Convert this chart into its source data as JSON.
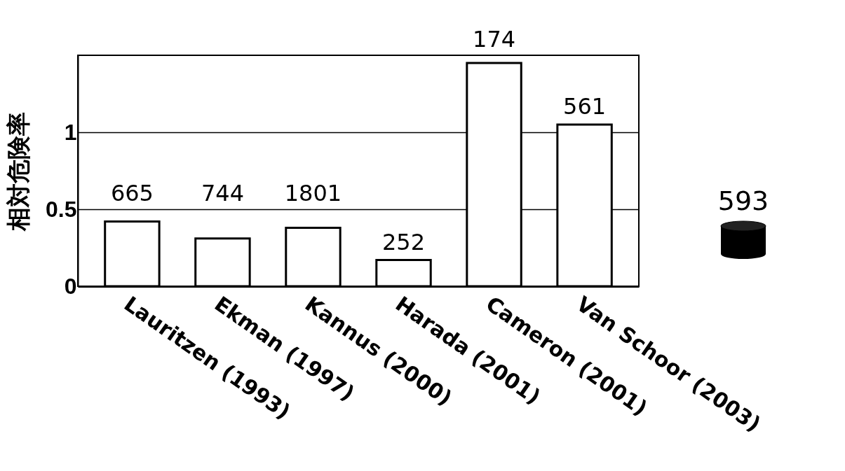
{
  "chart_data": {
    "type": "bar",
    "ylabel": "相対危険率",
    "categories": [
      "Lauritzen (1993)",
      "Ekman (1997)",
      "Kannus (2000)",
      "Harada (2001)",
      "Cameron (2001)",
      "Van Schoor (2003)"
    ],
    "values": [
      0.42,
      0.31,
      0.38,
      0.17,
      1.45,
      1.05
    ],
    "color": "#ffffff",
    "ylim": [
      0,
      1.5
    ],
    "yticks": [
      0,
      0.5,
      1
    ],
    "grid": "y",
    "annotations": [
      {
        "text": "665",
        "x": "Lauritzen (1993)",
        "y": 0.42
      },
      {
        "text": "744",
        "x": "Ekman (1997)",
        "y": 0.31
      },
      {
        "text": "1801",
        "x": "Kannus (2000)",
        "y": 0.38
      },
      {
        "text": "252",
        "x": "Harada (2001)",
        "y": 0.17
      },
      {
        "text": "174",
        "x": "Cameron (2001)",
        "y": 1.45
      },
      {
        "text": "561",
        "x": "Van Schoor (2003)",
        "y": 1.05
      },
      "593"
    ]
  }
}
